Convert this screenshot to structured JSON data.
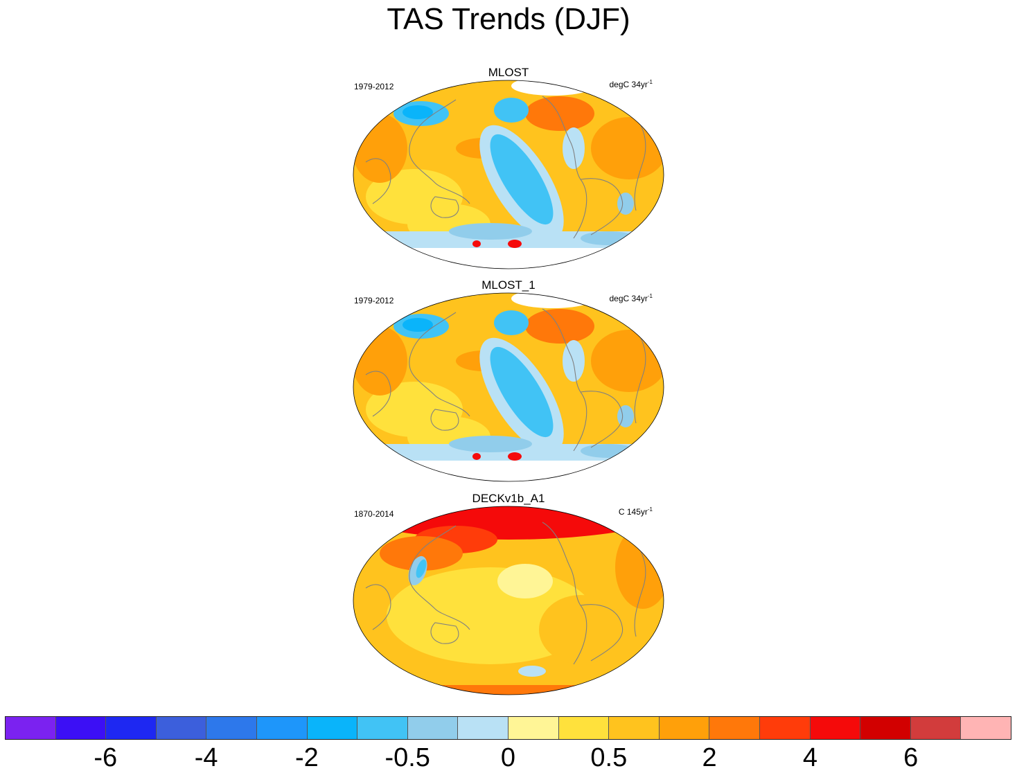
{
  "title": "TAS Trends (DJF)",
  "panels": [
    {
      "name": "MLOST",
      "period": "1979-2012",
      "units": "degC 34yr",
      "units_sup": "-1",
      "style": "cool"
    },
    {
      "name": "MLOST_1",
      "period": "1979-2012",
      "units": "degC 34yr",
      "units_sup": "-1",
      "style": "cool"
    },
    {
      "name": "DECKv1b_A1",
      "period": "1870-2014",
      "units": "C 145yr",
      "units_sup": "-1",
      "style": "warm"
    }
  ],
  "colorbar": {
    "colors": [
      "#7b22f0",
      "#3c0ff5",
      "#1e28f2",
      "#3c5fdc",
      "#2d78eb",
      "#1e96fa",
      "#0ab4fa",
      "#41c3f5",
      "#91cdeb",
      "#b9e1f5",
      "#fff596",
      "#ffe13c",
      "#ffc31e",
      "#ffa00a",
      "#ff780a",
      "#ff3c0a",
      "#f50a0a",
      "#d20000",
      "#d23c3c",
      "#ffb4b4"
    ],
    "labels": [
      {
        "text": "-6",
        "boundary": 2
      },
      {
        "text": "-4",
        "boundary": 4
      },
      {
        "text": "-2",
        "boundary": 6
      },
      {
        "text": "-0.5",
        "boundary": 8
      },
      {
        "text": "0",
        "boundary": 10
      },
      {
        "text": "0.5",
        "boundary": 12
      },
      {
        "text": "2",
        "boundary": 14
      },
      {
        "text": "4",
        "boundary": 16
      },
      {
        "text": "6",
        "boundary": 18
      }
    ]
  }
}
